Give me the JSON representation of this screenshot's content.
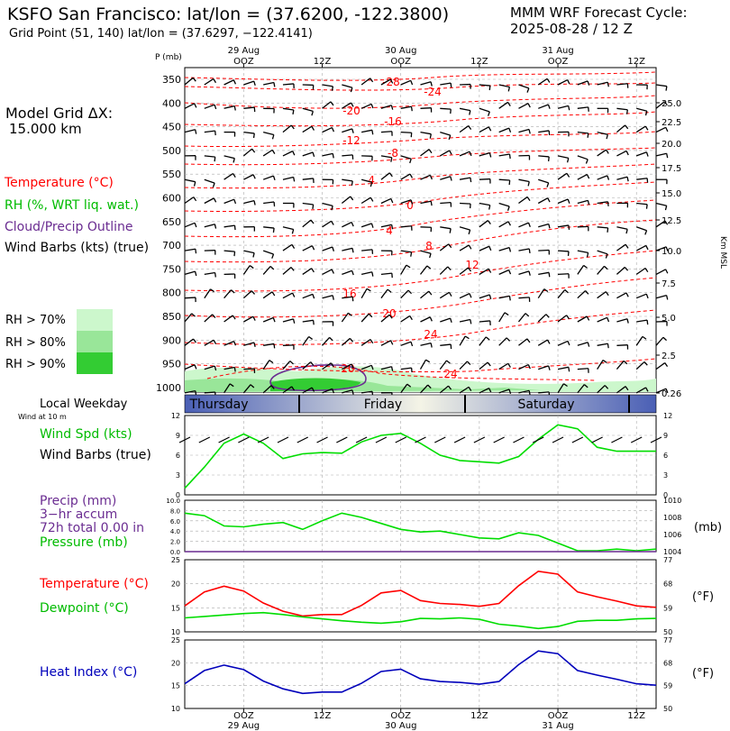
{
  "header": {
    "title": "KSFO San Francisco:  lat/lon = (37.6200, -122.3800)",
    "grid_point": "Grid Point (51, 140) lat/lon = (37.6297, −122.4141)",
    "cycle_line1": "MMM WRF Forecast Cycle:",
    "cycle_line2": "2025-08-28 / 12  Z"
  },
  "left_panel": {
    "model_grid_label": "Model Grid ΔX:",
    "model_grid_value": "15.000 km",
    "legend_temperature": "Temperature (°C)",
    "legend_rh": "RH (%, WRT liq. wat.)",
    "legend_cloud": "Cloud/Precip Outline",
    "legend_wind": "Wind Barbs (kts) (true)",
    "rh70": "RH > 70%",
    "rh80": "RH > 80%",
    "rh90": "RH > 90%",
    "local_weekday": "Local Weekday",
    "wind_at_10m": "Wind at 10 m",
    "wind_spd": "Wind Spd (kts)",
    "wind_barbs": "Wind Barbs (true)",
    "precip": "Precip (mm)",
    "precip_accum": "3−hr accum",
    "precip_total": "72h total 0.00 in",
    "pressure": "Pressure (mb)",
    "temperature": "Temperature (°C)",
    "dewpoint": "Dewpoint (°C)",
    "heat_index": "Heat Index (°C)"
  },
  "colors": {
    "temperature": "#ff0000",
    "rh": "#00cc00",
    "cloud": "#6a2c91",
    "wind": "#00dd00",
    "dewpoint": "#00dd00",
    "heat": "#0000bb",
    "rh70": "#ccf7cc",
    "rh80": "#99e699",
    "rh90": "#33cc33"
  },
  "time_axis": {
    "top_dates": [
      "29 Aug",
      "30 Aug",
      "31 Aug"
    ],
    "top_labels": [
      "OOZ",
      "12Z",
      "OOZ",
      "12Z",
      "OOZ",
      "12Z"
    ],
    "bottom_labels": [
      "OOZ",
      "12Z",
      "OOZ",
      "12Z",
      "OOZ",
      "12Z"
    ],
    "bottom_dates": [
      "29 Aug",
      "30 Aug",
      "31 Aug"
    ],
    "weekdays": [
      "Thursday",
      "Friday",
      "Saturday"
    ]
  },
  "chart_data": [
    {
      "type": "line",
      "name": "cross_section",
      "y_axis_label": "P (mb)",
      "pressure_ticks": [
        "350",
        "400",
        "450",
        "500",
        "550",
        "600",
        "650",
        "700",
        "750",
        "800",
        "850",
        "900",
        "950",
        "1000"
      ],
      "height_ticks": [
        "25.0",
        "22.5",
        "20.0",
        "17.5",
        "15.0",
        "12.5",
        "10.0",
        "7.5",
        "5.0",
        "2.5",
        "0.26"
      ],
      "height_unit": "Km MSL",
      "temperature_labels": [
        "-28",
        "-24",
        "-20",
        "-16",
        "-12",
        "-8",
        "-4",
        "0",
        "4",
        "8",
        "12",
        "16",
        "20",
        "24",
        "24",
        "20"
      ]
    },
    {
      "type": "line",
      "name": "wind_speed",
      "ylim": [
        0,
        12
      ],
      "yticks": [
        "0",
        "3",
        "6",
        "9",
        "12"
      ],
      "x": [
        0,
        3,
        6,
        9,
        12,
        15,
        18,
        21,
        24,
        27,
        30,
        33,
        36,
        39,
        42,
        45,
        48,
        51,
        54,
        57,
        60,
        63,
        66,
        69,
        72
      ],
      "values": [
        1.0,
        4.2,
        7.8,
        9.2,
        7.8,
        5.5,
        6.2,
        6.4,
        6.3,
        8.0,
        9.0,
        9.3,
        7.8,
        6.0,
        5.2,
        5.0,
        4.8,
        5.8,
        8.4,
        10.6,
        10.0,
        7.2,
        6.6,
        6.6,
        6.6
      ]
    },
    {
      "type": "line",
      "name": "precip_pressure",
      "precip_ylim": [
        0,
        10
      ],
      "precip_ticks": [
        "0.0",
        "2.0",
        "4.0",
        "6.0",
        "8.0",
        "10.0"
      ],
      "pressure_ylim": [
        1004,
        1010
      ],
      "pressure_ticks": [
        "1004",
        "1006",
        "1008",
        "1010"
      ],
      "unit": "(mb)",
      "x": [
        0,
        3,
        6,
        9,
        12,
        15,
        18,
        21,
        24,
        27,
        30,
        33,
        36,
        39,
        42,
        45,
        48,
        51,
        54,
        57,
        60,
        63,
        66,
        69,
        72
      ],
      "pressure": [
        1008.5,
        1008.2,
        1007.0,
        1006.9,
        1007.2,
        1007.4,
        1006.6,
        1007.6,
        1008.5,
        1008.0,
        1007.3,
        1006.6,
        1006.3,
        1006.4,
        1006.0,
        1005.6,
        1005.5,
        1006.2,
        1005.9,
        1005.0,
        1004.1,
        1004.1,
        1004.3,
        1004.1,
        1004.3
      ],
      "precip": [
        0,
        0,
        0,
        0,
        0,
        0,
        0,
        0,
        0,
        0,
        0,
        0,
        0,
        0,
        0,
        0,
        0,
        0,
        0,
        0,
        0,
        0,
        0,
        0,
        0
      ]
    },
    {
      "type": "line",
      "name": "temperature_dewpoint",
      "ylim": [
        10,
        25
      ],
      "yticks": [
        "10",
        "15",
        "20",
        "25"
      ],
      "f_ticks": [
        "50",
        "59",
        "68",
        "77"
      ],
      "unit": "(°F)",
      "x": [
        0,
        3,
        6,
        9,
        12,
        15,
        18,
        21,
        24,
        27,
        30,
        33,
        36,
        39,
        42,
        45,
        48,
        51,
        54,
        57,
        60,
        63,
        66,
        69,
        72
      ],
      "temperature": [
        15.4,
        18.3,
        19.5,
        18.5,
        16.0,
        14.3,
        13.3,
        13.6,
        13.6,
        15.5,
        18.1,
        18.6,
        16.5,
        15.9,
        15.7,
        15.3,
        15.9,
        19.6,
        22.6,
        22.0,
        18.3,
        17.3,
        16.4,
        15.4,
        15.1
      ],
      "dewpoint": [
        12.9,
        13.2,
        13.5,
        13.8,
        14.0,
        13.6,
        13.1,
        12.7,
        12.3,
        12.0,
        11.8,
        12.1,
        12.8,
        12.7,
        12.9,
        12.6,
        11.6,
        11.2,
        10.7,
        11.1,
        12.2,
        12.4,
        12.4,
        12.7,
        12.8
      ]
    },
    {
      "type": "line",
      "name": "heat_index",
      "ylim": [
        10,
        25
      ],
      "yticks": [
        "10",
        "15",
        "20",
        "25"
      ],
      "f_ticks": [
        "50",
        "59",
        "68",
        "77"
      ],
      "unit": "(°F)",
      "x": [
        0,
        3,
        6,
        9,
        12,
        15,
        18,
        21,
        24,
        27,
        30,
        33,
        36,
        39,
        42,
        45,
        48,
        51,
        54,
        57,
        60,
        63,
        66,
        69,
        72
      ],
      "values": [
        15.4,
        18.3,
        19.5,
        18.5,
        16.0,
        14.3,
        13.3,
        13.6,
        13.6,
        15.5,
        18.1,
        18.6,
        16.5,
        15.9,
        15.7,
        15.3,
        15.9,
        19.6,
        22.6,
        22.0,
        18.3,
        17.3,
        16.4,
        15.4,
        15.1
      ]
    }
  ]
}
